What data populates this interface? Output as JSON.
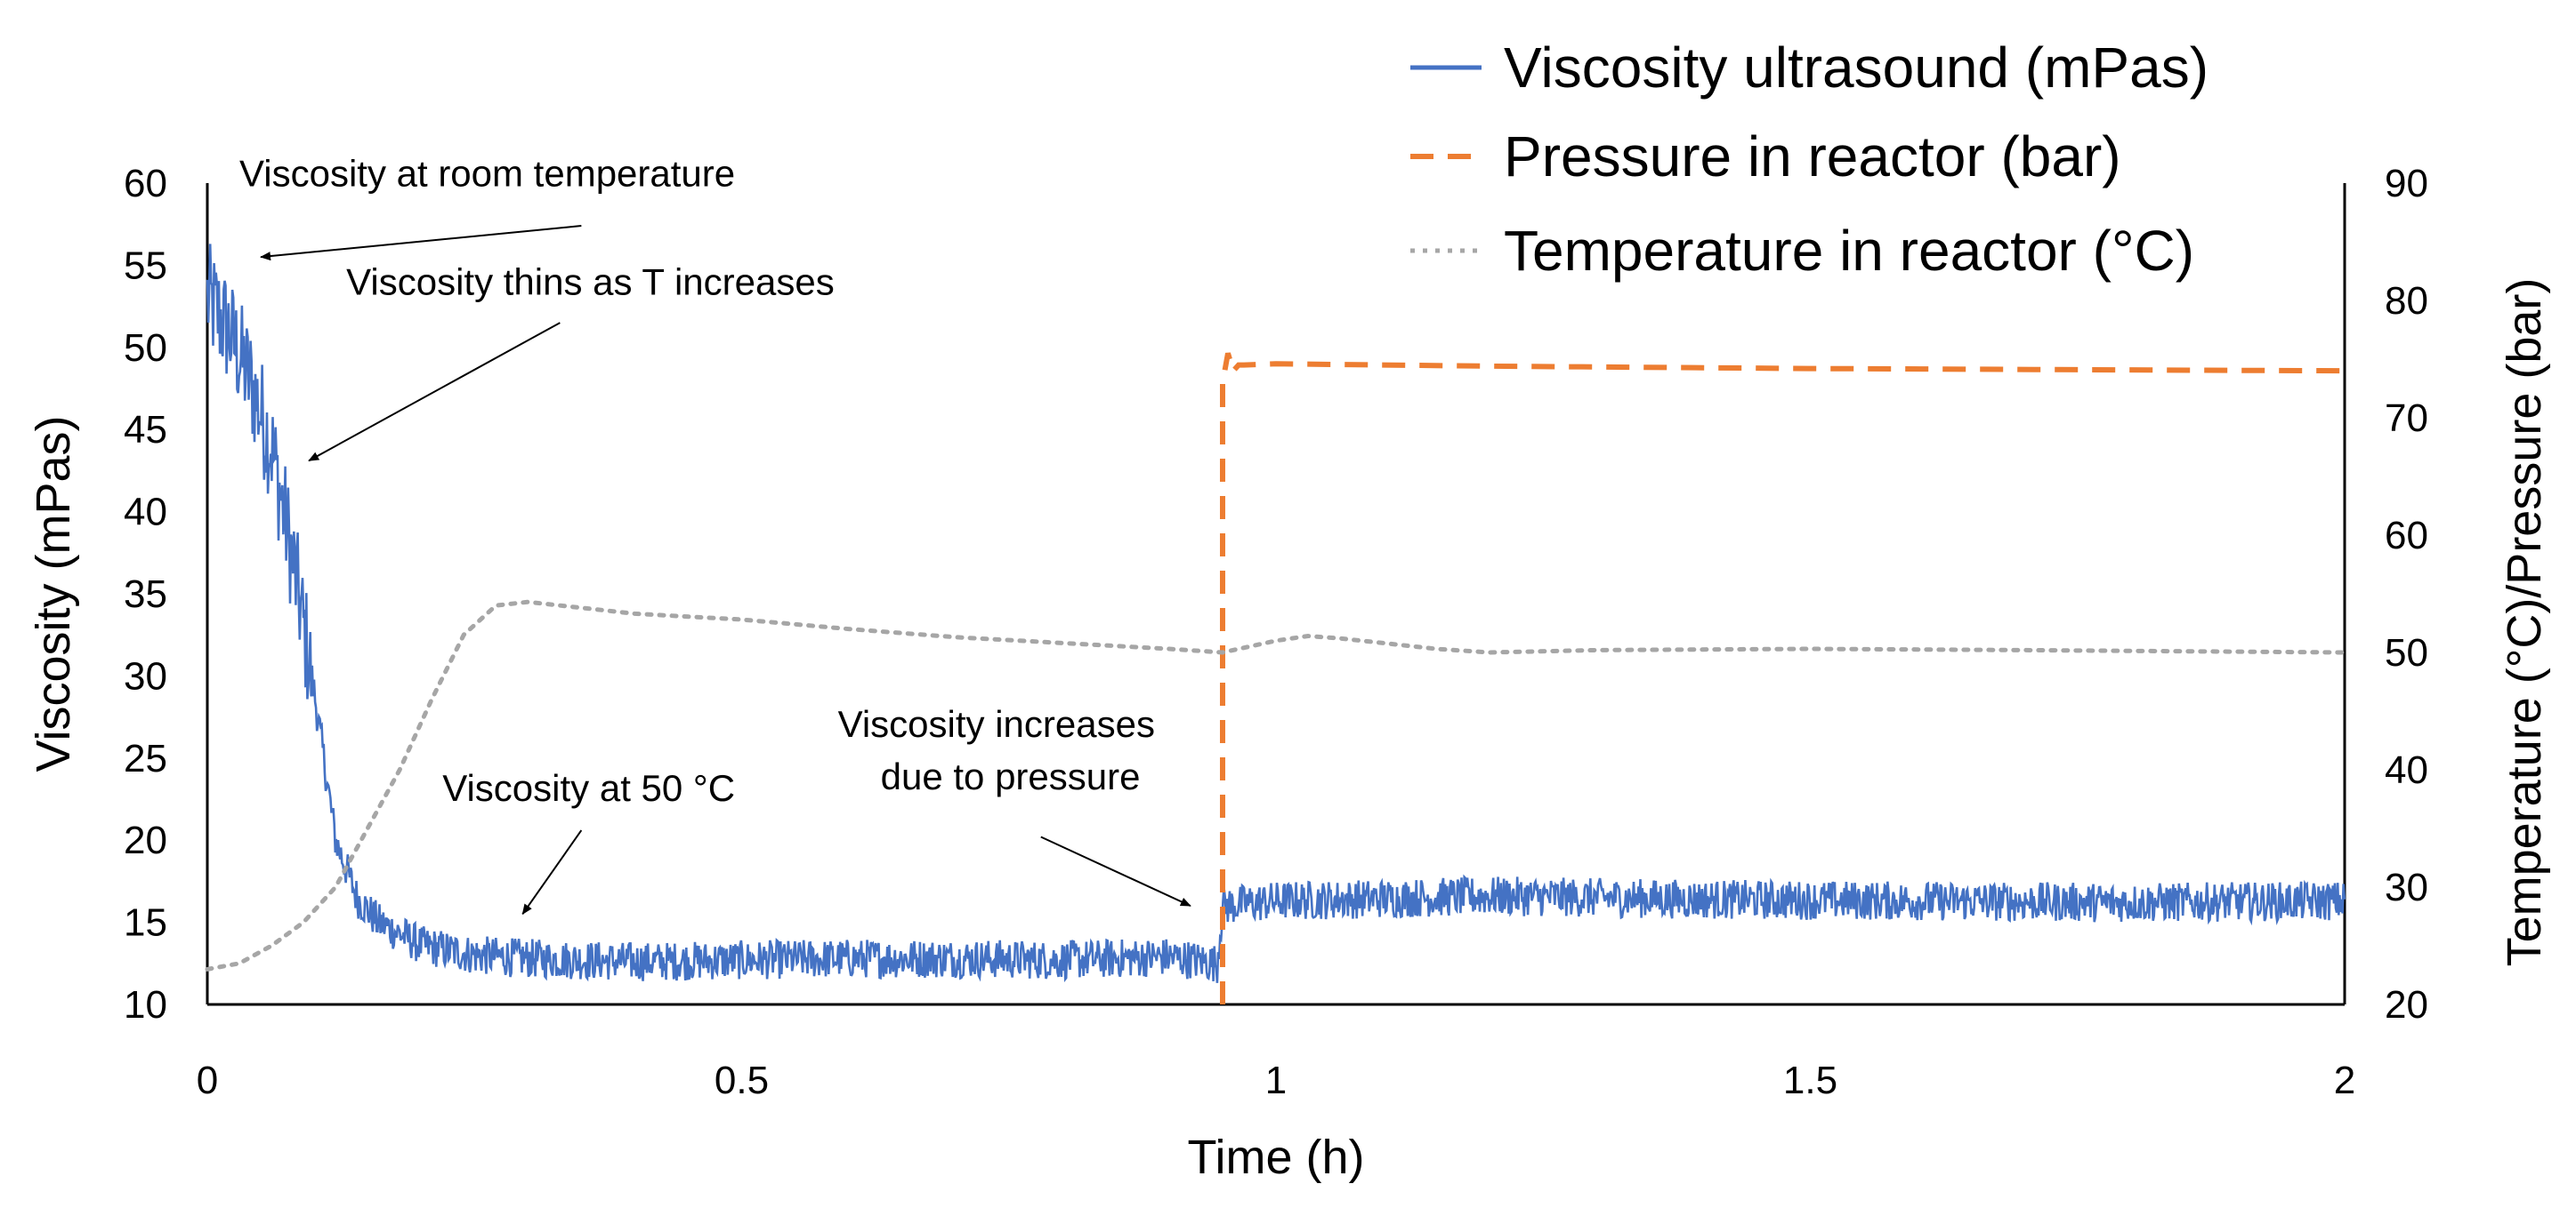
{
  "chart_data": {
    "type": "line",
    "xlabel": "Time (h)",
    "ylabel": "Viscosity (mPas)",
    "y2label": "Temperature (°C)/Pressure (bar)",
    "xlim": [
      0,
      2
    ],
    "ylim": [
      10,
      60
    ],
    "y2lim": [
      20,
      90
    ],
    "x_ticks": [
      "0",
      "0.5",
      "1",
      "1.5",
      "2"
    ],
    "y_ticks": [
      "10",
      "15",
      "20",
      "25",
      "30",
      "35",
      "40",
      "45",
      "50",
      "55",
      "60"
    ],
    "y2_ticks": [
      "20",
      "30",
      "40",
      "50",
      "60",
      "70",
      "80",
      "90"
    ],
    "grid": false,
    "legend_position": "top-right",
    "series": [
      {
        "name": "Viscosity ultrasound (mPas)",
        "axis": "left",
        "color": "#4472c4",
        "style": "solid",
        "noise": 1.2,
        "x": [
          0,
          0.02,
          0.04,
          0.06,
          0.08,
          0.1,
          0.12,
          0.14,
          0.16,
          0.2,
          0.25,
          0.3,
          0.4,
          0.5,
          0.6,
          0.7,
          0.8,
          0.9,
          0.945,
          0.95,
          1.0,
          1.2,
          1.4,
          1.6,
          1.8,
          2.0
        ],
        "values": [
          53,
          51,
          48,
          44,
          37,
          29,
          20,
          16.5,
          15,
          13.6,
          13,
          12.8,
          12.6,
          12.7,
          12.8,
          12.8,
          12.7,
          12.9,
          12.5,
          16,
          16.3,
          16.6,
          16.4,
          16.3,
          16.2,
          16.3
        ]
      },
      {
        "name": "Pressure in reactor (bar)",
        "axis": "right",
        "color": "#ed7d31",
        "style": "dashed",
        "x": [
          0.95,
          0.95,
          0.955,
          0.96,
          0.965,
          0.97,
          1.0,
          1.2,
          1.5,
          2.0
        ],
        "values": [
          20,
          73,
          75.5,
          74,
          74.5,
          74.5,
          74.6,
          74.4,
          74.2,
          74
        ]
      },
      {
        "name": "Temperature in reactor (°C)",
        "axis": "right",
        "color": "#a6a6a6",
        "style": "dotted",
        "x": [
          0,
          0.03,
          0.06,
          0.09,
          0.12,
          0.15,
          0.18,
          0.21,
          0.24,
          0.27,
          0.3,
          0.35,
          0.4,
          0.5,
          0.6,
          0.7,
          0.8,
          0.9,
          0.95,
          0.98,
          1.0,
          1.03,
          1.06,
          1.1,
          1.15,
          1.2,
          1.3,
          1.5,
          1.7,
          1.85,
          2.0
        ],
        "values": [
          23,
          23.5,
          25,
          27,
          30,
          35,
          40,
          46,
          51.5,
          54,
          54.3,
          53.8,
          53.3,
          52.8,
          52,
          51.3,
          50.8,
          50.3,
          50,
          50.6,
          51,
          51.4,
          51.2,
          50.8,
          50.3,
          50,
          50.2,
          50.3,
          50.2,
          50.1,
          50
        ]
      }
    ],
    "annotations": [
      {
        "text": "Viscosity at room temperature",
        "x": 0.05,
        "y": 55.5,
        "text_x": 0.03,
        "text_y": 59.8,
        "line_from_x": 0.35,
        "line_from_y": 57.4
      },
      {
        "text": "Viscosity thins as T increases",
        "x": 0.095,
        "y": 43.1,
        "text_x": 0.13,
        "text_y": 53.2,
        "line_from_x": 0.33,
        "line_from_y": 51.5
      },
      {
        "text": "Viscosity at 50 °C",
        "x": 0.295,
        "y": 15.5,
        "text_x": 0.22,
        "text_y": 22.4,
        "line_from_x": 0.35,
        "line_from_y": 20.6
      },
      {
        "text": "Viscosity increases",
        "x": 0.92,
        "y": 16,
        "text_x": 0.59,
        "text_y": 26.3
      },
      {
        "text": "due to pressure",
        "x": 0.92,
        "y": 16,
        "text_x": 0.63,
        "text_y": 23.1,
        "line_from_x": 0.78,
        "line_from_y": 20.2
      }
    ]
  }
}
